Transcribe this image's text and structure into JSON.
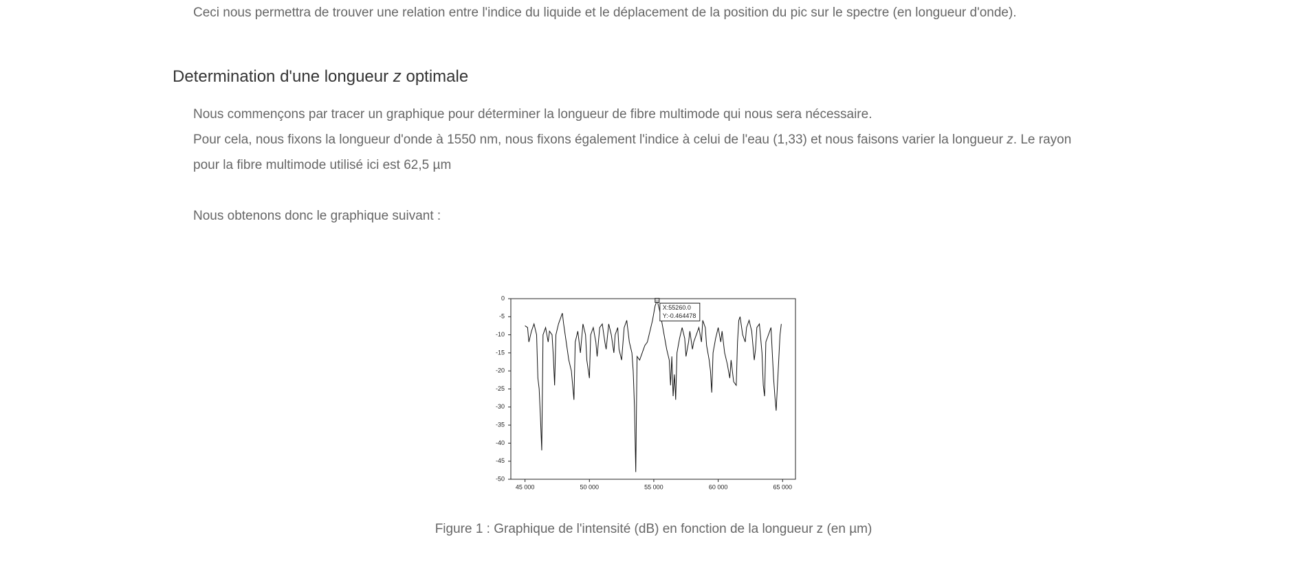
{
  "intro_text": "Ceci nous permettra de trouver une relation entre l'indice du liquide et le déplacement de la position du pic sur le spectre (en longueur d'onde).",
  "heading": {
    "before": "Determination d'une longueur ",
    "var": "z",
    "after": " optimale"
  },
  "paragraph_1": "Nous commençons par tracer un graphique pour déterminer la longueur de fibre multimode qui nous sera nécessaire.",
  "paragraph_2": {
    "before": "Pour cela, nous fixons la longueur d'onde à 1550 nm, nous fixons également l'indice à celui de l'eau (1,33) et nous faisons varier la longueur ",
    "var": "z",
    "after": ". Le rayon pour la fibre multimode utilisé ici est 62,5 µm"
  },
  "paragraph_3": "Nous obtenons donc le graphique suivant :",
  "caption": "Figure 1 : Graphique de l'intensité (dB) en fonction de la longueur z (en µm)",
  "chart_data": {
    "type": "line",
    "color": "#111111",
    "xlim": [
      43900,
      66000
    ],
    "ylim": [
      -50,
      0
    ],
    "xticks": [
      {
        "value": 45000,
        "label": "45 000"
      },
      {
        "value": 50000,
        "label": "50 000"
      },
      {
        "value": 55000,
        "label": "55 000"
      },
      {
        "value": 60000,
        "label": "60 000"
      },
      {
        "value": 65000,
        "label": "65 000"
      }
    ],
    "yticks": [
      0,
      -5,
      -10,
      -15,
      -20,
      -25,
      -30,
      -35,
      -40,
      -45,
      -50
    ],
    "x": [
      45000,
      45200,
      45300,
      45500,
      45700,
      45900,
      46000,
      46100,
      46200,
      46300,
      46400,
      46600,
      46800,
      46900,
      47100,
      47200,
      47300,
      47400,
      47600,
      47800,
      47900,
      48000,
      48200,
      48400,
      48600,
      48800,
      48900,
      49100,
      49300,
      49400,
      49500,
      49700,
      49800,
      50000,
      50100,
      50300,
      50500,
      50600,
      50800,
      51000,
      51200,
      51300,
      51500,
      51700,
      51900,
      52000,
      52200,
      52300,
      52500,
      52700,
      52900,
      53100,
      53300,
      53400,
      53500,
      53600,
      53700,
      53900,
      54100,
      54300,
      54500,
      54700,
      54900,
      55100,
      55260,
      55500,
      55700,
      55900,
      56000,
      56200,
      56300,
      56400,
      56500,
      56600,
      56700,
      56800,
      57000,
      57200,
      57400,
      57500,
      57700,
      57800,
      58000,
      58100,
      58300,
      58500,
      58700,
      58800,
      59000,
      59100,
      59300,
      59400,
      59500,
      59600,
      59800,
      60000,
      60200,
      60300,
      60500,
      60700,
      60900,
      61000,
      61200,
      61400,
      61500,
      61600,
      61700,
      61900,
      62100,
      62200,
      62400,
      62600,
      62800,
      62900,
      63000,
      63200,
      63400,
      63500,
      63600,
      63700,
      63900,
      64100,
      64300,
      64400,
      64500,
      64600,
      64800,
      64900
    ],
    "values": [
      -7.5,
      -8,
      -12,
      -9,
      -7,
      -10,
      -22,
      -25,
      -33,
      -42,
      -10,
      -8,
      -12,
      -9,
      -10,
      -16,
      -24,
      -10,
      -7,
      -5,
      -4,
      -7,
      -12,
      -17,
      -20,
      -28,
      -12,
      -9,
      -15,
      -11,
      -7,
      -10,
      -17,
      -22,
      -10,
      -8,
      -12,
      -16,
      -8,
      -7,
      -12,
      -14,
      -7,
      -10,
      -15,
      -10,
      -8,
      -14,
      -17,
      -8,
      -6,
      -12,
      -15,
      -20,
      -30,
      -48,
      -16,
      -17,
      -15,
      -13,
      -12,
      -9,
      -6,
      -2,
      -0.464478,
      -4,
      -8,
      -12,
      -14,
      -17,
      -24,
      -16,
      -27,
      -21,
      -28,
      -15,
      -11,
      -8,
      -11,
      -16,
      -12,
      -9,
      -14,
      -12,
      -10,
      -8,
      -12,
      -6,
      -8,
      -13,
      -17,
      -20,
      -26,
      -15,
      -11,
      -8,
      -12,
      -9,
      -15,
      -18,
      -22,
      -17,
      -23,
      -24,
      -12,
      -6,
      -5,
      -10,
      -12,
      -8,
      -6,
      -9,
      -17,
      -14,
      -8,
      -7,
      -15,
      -24,
      -27,
      -12,
      -10,
      -8,
      -22,
      -27,
      -31,
      -24,
      -10,
      -7
    ],
    "annotation": {
      "x": 55260,
      "y": -0.464478,
      "labels": [
        "X:55260.0",
        "Y:-0.464478"
      ]
    }
  }
}
